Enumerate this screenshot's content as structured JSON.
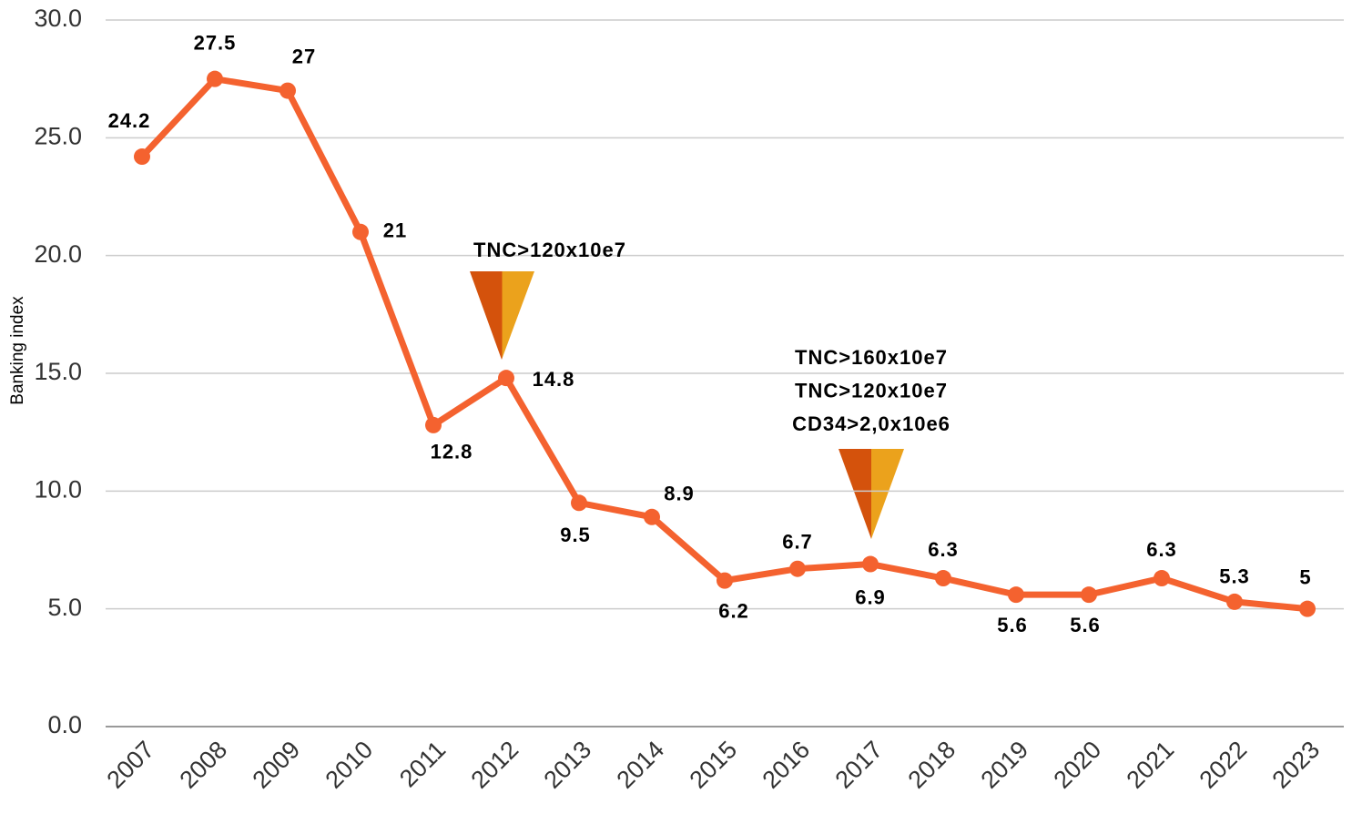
{
  "chart_data": {
    "type": "line",
    "y_label": "Banking index",
    "categories": [
      "2007",
      "2008",
      "2009",
      "2010",
      "2011",
      "2012",
      "2013",
      "2014",
      "2015",
      "2016",
      "2017",
      "2018",
      "2019",
      "2020",
      "2021",
      "2022",
      "2023"
    ],
    "series": [
      {
        "name": "Banking index",
        "color": "#f4622f",
        "values": [
          24.2,
          27.5,
          27,
          21,
          12.8,
          14.8,
          9.5,
          8.9,
          6.2,
          6.7,
          6.9,
          6.3,
          5.6,
          5.6,
          6.3,
          5.3,
          5
        ]
      }
    ],
    "ylim": [
      0,
      30
    ],
    "yticks": [
      {
        "value": 0,
        "label": "0.0"
      },
      {
        "value": 5,
        "label": "5.0"
      },
      {
        "value": 10,
        "label": "10.0"
      },
      {
        "value": 15,
        "label": "15.0"
      },
      {
        "value": 20,
        "label": "20.0"
      },
      {
        "value": 25,
        "label": "25.0"
      },
      {
        "value": 30,
        "label": "30.0"
      }
    ],
    "grid": true,
    "annotations": [
      [
        "TNC>120x10e7"
      ],
      [
        "TNC>160x10e7",
        "TNC>120x10e7",
        "CD34>2,0x10e6"
      ]
    ]
  }
}
